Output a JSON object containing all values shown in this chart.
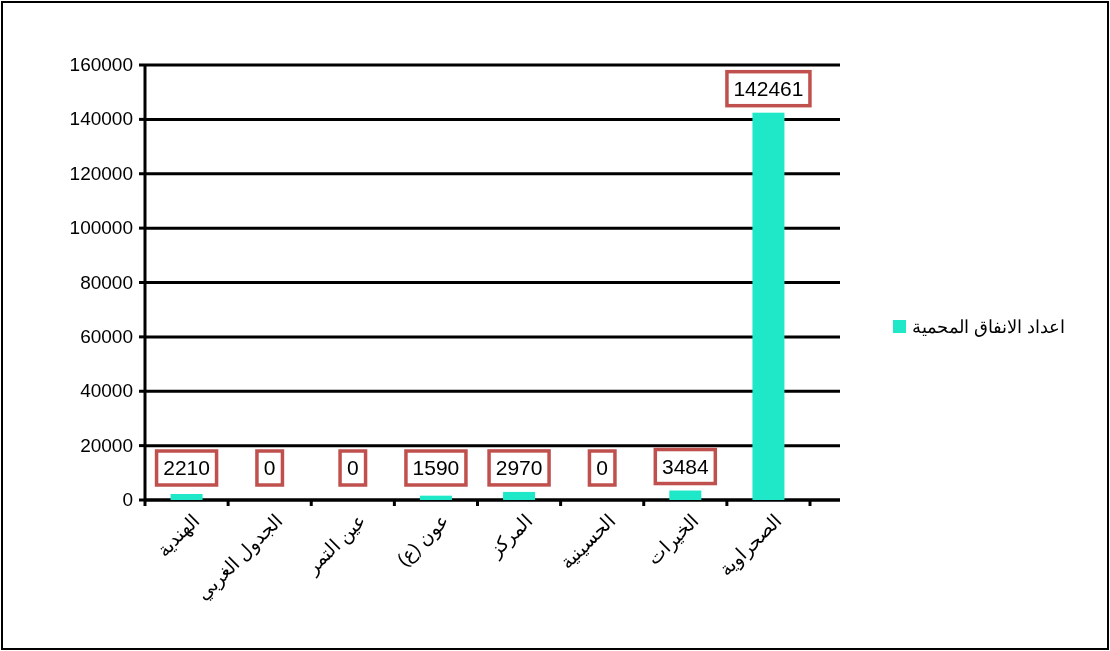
{
  "chart_data": {
    "type": "bar",
    "categories": [
      "الهندية",
      "الجدول الغربي",
      "عين التمر",
      "عون (ع)",
      "المركز",
      "الحسينية",
      "الخيرات",
      "الصحراوية"
    ],
    "series": [
      {
        "name": "اعداد الانفاق المحمية",
        "color": "#1ee8c8",
        "values": [
          2210,
          0,
          0,
          1590,
          2970,
          0,
          3484,
          142461
        ]
      }
    ],
    "ylim": [
      0,
      160000
    ],
    "yticks": [
      0,
      20000,
      40000,
      60000,
      80000,
      100000,
      120000,
      140000,
      160000
    ],
    "grid": "y",
    "legend": "right",
    "data_labels": true
  }
}
